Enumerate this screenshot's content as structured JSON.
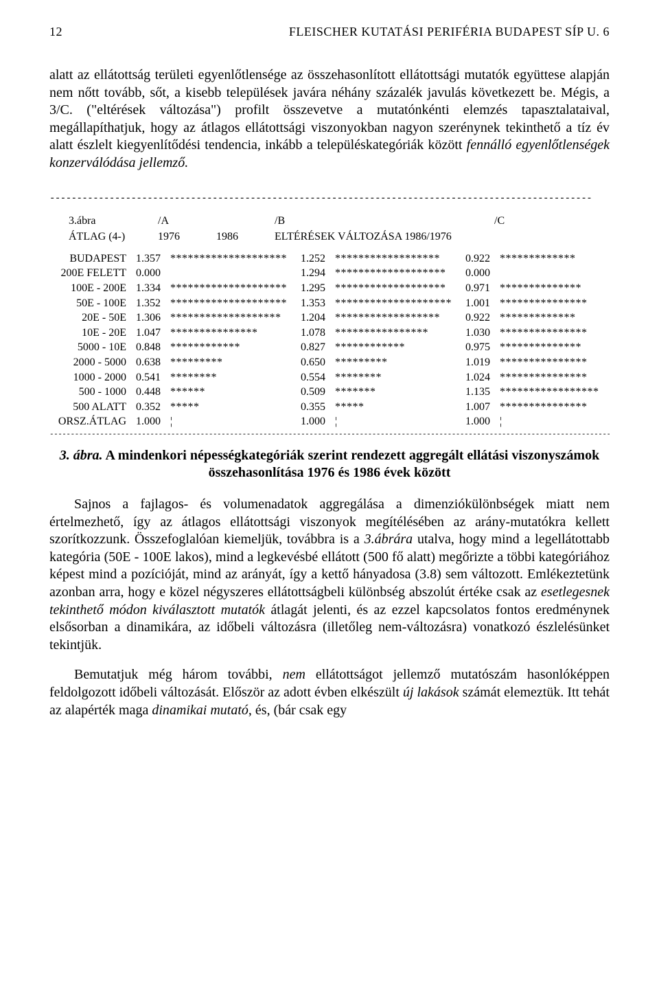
{
  "page_number": "12",
  "running_head": "FLEISCHER KUTATÁSI PERIFÉRIA BUDAPEST SÍP U. 6",
  "para1": "alatt az ellátottság területi egyenlőtlensége az összehasonlított ellátottsági mutatók együttese alapján nem nőtt tovább, sőt, a kisebb települések javára néhány százalék javulás következett be. Mégis, a 3/C. (\"eltérések változása\") profilt összevetve a mutatónkénti elemzés tapasztalataival, megállapíthatjuk, hogy az átlagos ellátottsági viszonyokban nagyon szerénynek tekinthető a tíz év alatt észlelt kiegyenlítődési tendencia, inkább a településkategóriák között ",
  "para1_em": "fennálló egyenlőtlenségek konzerválódása jellemző.",
  "hr": "----------------------------------------------------------------------------------------------------",
  "hr_thin": "-----------------------------------------------------------------------------------------------------------------------------------------------",
  "tbl": {
    "h1": {
      "c1": "3.ábra",
      "c2": "/A",
      "c3": "",
      "c4": "/B",
      "c5": "/C"
    },
    "h2": {
      "c1": "ÁTLAG (4-)",
      "c2": "1976",
      "c3": "1986",
      "c4": "ELTÉRÉSEK VÁLTOZÁSA 1986/1976"
    },
    "rows": [
      {
        "cat": "BUDAPEST",
        "a": "1.357",
        "abar": "********************",
        "b": "1.252",
        "bbar": "******************",
        "c": "0.922",
        "cbar": "*************"
      },
      {
        "cat": "200E FELETT",
        "a": "0.000",
        "abar": "",
        "b": "1.294",
        "bbar": "*******************",
        "c": "0.000",
        "cbar": ""
      },
      {
        "cat": "100E - 200E",
        "a": "1.334",
        "abar": "********************",
        "b": "1.295",
        "bbar": "*******************",
        "c": "0.971",
        "cbar": "**************"
      },
      {
        "cat": "50E - 100E",
        "a": "1.352",
        "abar": "********************",
        "b": "1.353",
        "bbar": "********************",
        "c": "1.001",
        "cbar": "***************"
      },
      {
        "cat": "20E - 50E",
        "a": "1.306",
        "abar": "*******************",
        "b": "1.204",
        "bbar": "******************",
        "c": "0.922",
        "cbar": "*************"
      },
      {
        "cat": "10E - 20E",
        "a": "1.047",
        "abar": "***************",
        "b": "1.078",
        "bbar": "****************",
        "c": "1.030",
        "cbar": "***************"
      },
      {
        "cat": "5000 - 10E",
        "a": "0.848",
        "abar": "************",
        "b": "0.827",
        "bbar": "************",
        "c": "0.975",
        "cbar": "**************"
      },
      {
        "cat": "2000 - 5000",
        "a": "0.638",
        "abar": "*********",
        "b": "0.650",
        "bbar": "*********",
        "c": "1.019",
        "cbar": "***************"
      },
      {
        "cat": "1000 - 2000",
        "a": "0.541",
        "abar": "********",
        "b": "0.554",
        "bbar": "********",
        "c": "1.024",
        "cbar": "***************"
      },
      {
        "cat": "500 - 1000",
        "a": "0.448",
        "abar": "******",
        "b": "0.509",
        "bbar": "*******",
        "c": "1.135",
        "cbar": "*****************"
      },
      {
        "cat": "500 ALATT",
        "a": "0.352",
        "abar": "*****",
        "b": "0.355",
        "bbar": "*****",
        "c": "1.007",
        "cbar": "***************"
      },
      {
        "cat": "ORSZ.ÁTLAG",
        "a": "1.000",
        "abar": "¦",
        "b": "1.000",
        "bbar": "¦",
        "c": "1.000",
        "cbar": "¦"
      }
    ]
  },
  "caption_lead": "3. ábra.",
  "caption_rest": " A mindenkori népességkategóriák szerint rendezett aggregált ellátási viszonyszámok összehasonlítása 1976 és 1986 évek között",
  "para2_a": "Sajnos a fajlagos- és volumenadatok aggregálása a dimenziókülönbségek miatt nem értelmezhető, így az átlagos ellátottsági viszonyok megítélésében az arány-mutatókra kellett szorítkozzunk. Összefoglalóan kiemeljük, továbbra is a ",
  "para2_em1": "3.ábrára",
  "para2_b": " utalva, hogy mind a legellátottabb kategória (50E - 100E lakos), mind a legkevésbé ellátott (500 fő alatt) megőrizte a többi kategóriához képest mind a pozícióját, mind az arányát, így a kettő hányadosa (3.8) sem változott. Emlékeztetünk azonban arra, hogy e közel négyszeres ellátottságbeli különbség abszolút értéke csak az ",
  "para2_em2": "esetlegesnek tekinthető módon kiválasztott mutatók",
  "para2_c": " átlagát jelenti, és az ezzel kapcsolatos fontos eredménynek elsősorban a dinamikára, az időbeli változásra (illetőleg nem-változásra) vonatkozó észlelésünket tekintjük.",
  "para3_a": "Bemutatjuk még három további, ",
  "para3_em1": "nem",
  "para3_b": " ellátottságot jellemző mutatószám hasonlóképpen feldolgozott időbeli változását. Először az adott évben elkészült ",
  "para3_em2": "új lakások",
  "para3_c": " számát elemeztük. Itt tehát az alapérték maga ",
  "para3_em3": "dinamikai mutató",
  "para3_d": ", és, (bár csak egy"
}
